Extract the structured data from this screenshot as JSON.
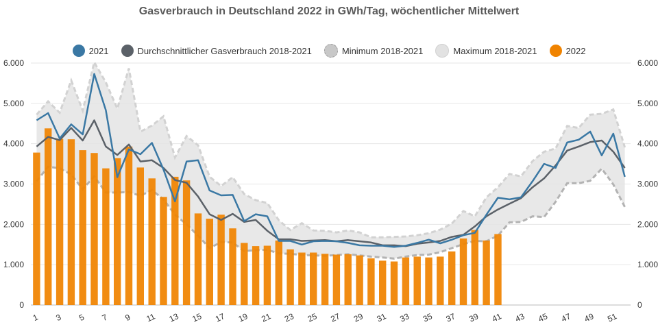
{
  "chart_data": {
    "type": "bar-line",
    "title": "Gasverbrauch in Deutschland 2022 in GWh/Tag, wöchentlicher Mittelwert",
    "ylim": [
      0,
      6000
    ],
    "y_ticks": [
      "0",
      "1.000",
      "2.000",
      "3.000",
      "4.000",
      "5.000",
      "6.000"
    ],
    "y_tick_values": [
      0,
      1000,
      2000,
      3000,
      4000,
      5000,
      6000
    ],
    "x_tick_labels": [
      "1",
      "3",
      "5",
      "7",
      "9",
      "11",
      "13",
      "15",
      "17",
      "19",
      "21",
      "23",
      "25",
      "27",
      "29",
      "31",
      "33",
      "35",
      "37",
      "39",
      "41",
      "43",
      "45",
      "47",
      "49",
      "51"
    ],
    "x_tick_values": [
      1,
      3,
      5,
      7,
      9,
      11,
      13,
      15,
      17,
      19,
      21,
      23,
      25,
      27,
      29,
      31,
      33,
      35,
      37,
      39,
      41,
      43,
      45,
      47,
      49,
      51
    ],
    "weeks": [
      1,
      2,
      3,
      4,
      5,
      6,
      7,
      8,
      9,
      10,
      11,
      12,
      13,
      14,
      15,
      16,
      17,
      18,
      19,
      20,
      21,
      22,
      23,
      24,
      25,
      26,
      27,
      28,
      29,
      30,
      31,
      32,
      33,
      34,
      35,
      36,
      37,
      38,
      39,
      40,
      41,
      42,
      43,
      44,
      45,
      46,
      47,
      48,
      49,
      50,
      51,
      52
    ],
    "legend": [
      {
        "name": "2021",
        "color": "#3a78a4"
      },
      {
        "name": "Durchschnittlicher Gasverbrauch 2018-2021",
        "color": "#5b6168"
      },
      {
        "name": "Minimum 2018-2021",
        "color": "#c8c8c8"
      },
      {
        "name": "Maximum 2018-2021",
        "color": "#e2e2e2"
      },
      {
        "name": "2022",
        "color": "#f08300"
      }
    ],
    "series": [
      {
        "name": "2022",
        "type": "bar",
        "color": "#f08300",
        "values": [
          3780,
          4380,
          4120,
          4110,
          3840,
          3770,
          3390,
          3640,
          3930,
          3410,
          3140,
          2680,
          3180,
          3090,
          2270,
          2140,
          2240,
          1900,
          1540,
          1460,
          1470,
          1600,
          1380,
          1300,
          1300,
          1270,
          1250,
          1260,
          1230,
          1160,
          1100,
          1080,
          1180,
          1200,
          1180,
          1200,
          1330,
          1650,
          1860,
          1600,
          1760
        ]
      },
      {
        "name": "2021",
        "type": "line",
        "color": "#3a78a4",
        "values": [
          4580,
          4760,
          4130,
          4480,
          4230,
          5730,
          4830,
          3170,
          3860,
          3740,
          4020,
          3360,
          2570,
          3560,
          3590,
          2840,
          2720,
          2730,
          2080,
          2250,
          2200,
          1590,
          1590,
          1500,
          1580,
          1590,
          1580,
          1540,
          1480,
          1470,
          1470,
          1440,
          1470,
          1540,
          1620,
          1530,
          1620,
          1730,
          1790,
          2240,
          2660,
          2620,
          2670,
          3070,
          3500,
          3400,
          4030,
          4100,
          4300,
          3710,
          4250,
          3180
        ]
      },
      {
        "name": "Durchschnittlicher Gasverbrauch 2018-2021",
        "type": "line",
        "color": "#5b6168",
        "values": [
          3930,
          4170,
          4090,
          4390,
          4080,
          4580,
          3930,
          3720,
          3980,
          3560,
          3590,
          3400,
          3100,
          3030,
          2690,
          2250,
          2110,
          2260,
          2060,
          2110,
          1840,
          1630,
          1630,
          1590,
          1600,
          1610,
          1580,
          1610,
          1580,
          1550,
          1480,
          1480,
          1460,
          1520,
          1550,
          1590,
          1690,
          1740,
          1950,
          2200,
          2370,
          2510,
          2650,
          2920,
          3140,
          3460,
          3830,
          3930,
          4040,
          4080,
          3800,
          3400
        ]
      },
      {
        "name": "Minimum 2018-2021",
        "type": "area-bound",
        "color": "#c8c8c8",
        "values": [
          3070,
          3430,
          3390,
          3240,
          2870,
          3190,
          2790,
          2790,
          2800,
          2710,
          2850,
          2620,
          2240,
          2000,
          1720,
          1410,
          1560,
          1550,
          1340,
          1360,
          1370,
          1280,
          1270,
          1240,
          1230,
          1220,
          1240,
          1260,
          1230,
          1200,
          1180,
          1150,
          1200,
          1240,
          1250,
          1310,
          1410,
          1510,
          1590,
          1580,
          1720,
          2050,
          2060,
          2200,
          2180,
          2560,
          3020,
          3020,
          3080,
          3380,
          2990,
          2430
        ]
      },
      {
        "name": "Maximum 2018-2021",
        "type": "area-bound",
        "color": "#e2e2e2",
        "values": [
          4720,
          5050,
          4770,
          5570,
          4820,
          6020,
          5520,
          4870,
          5870,
          4300,
          4450,
          4680,
          3660,
          4190,
          3960,
          3180,
          2950,
          3170,
          2750,
          2600,
          2530,
          2100,
          1860,
          2030,
          1850,
          1840,
          1800,
          1850,
          1800,
          1680,
          1680,
          1690,
          1700,
          1730,
          1780,
          1870,
          2020,
          2330,
          2200,
          2670,
          2920,
          3250,
          3190,
          3570,
          3800,
          3880,
          4440,
          4390,
          4720,
          4740,
          4850,
          3910
        ]
      }
    ]
  }
}
